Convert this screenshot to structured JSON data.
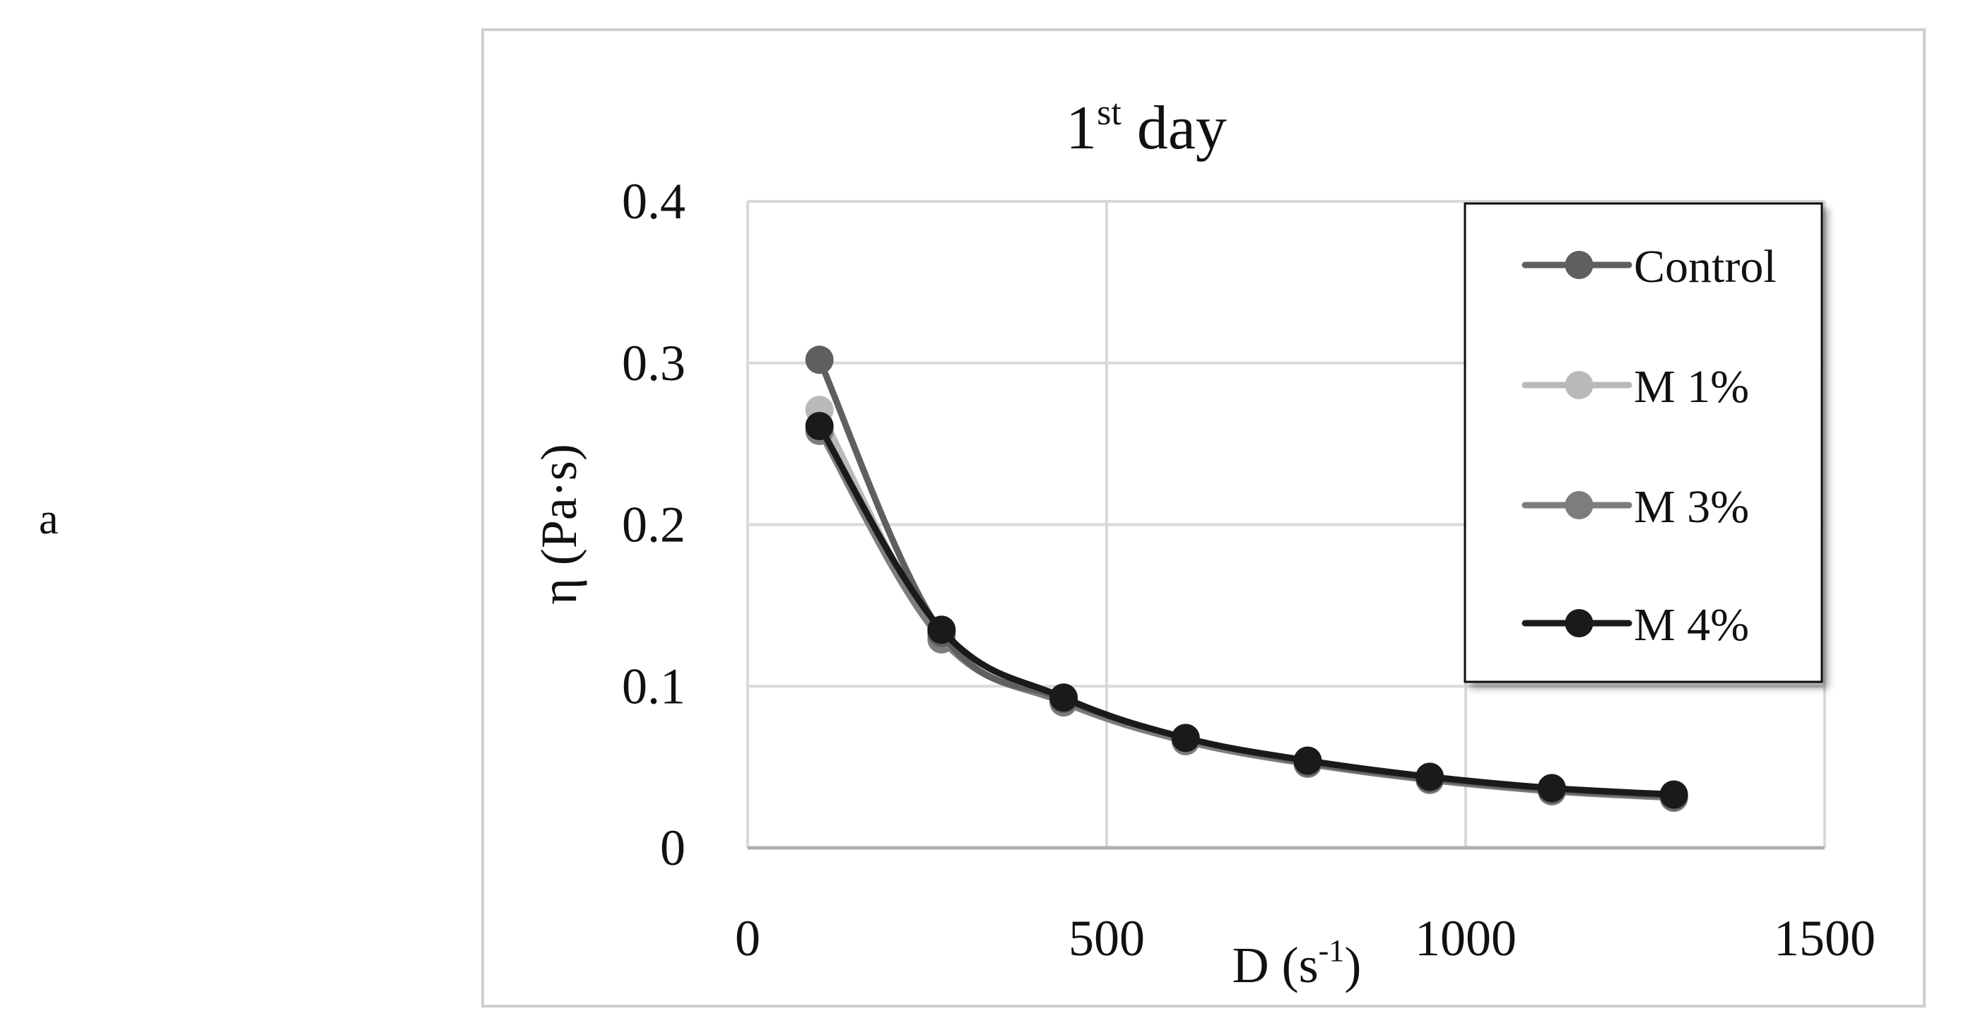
{
  "panel_label": "a",
  "chart_data": {
    "type": "line",
    "title": "1st day",
    "title_main": "1",
    "title_sup": "st",
    "title_rest": " day",
    "xlabel": "D (s-1)",
    "xlabel_main": "D (s",
    "xlabel_sup": "-1",
    "xlabel_end": ")",
    "ylabel": "η (Pa·s)",
    "xlim": [
      0,
      1500
    ],
    "ylim": [
      0,
      0.4
    ],
    "x_ticks": [
      0,
      500,
      1000,
      1500
    ],
    "x_tick_labels": [
      "0",
      "500",
      "1000",
      "1500"
    ],
    "y_ticks": [
      0,
      0.1,
      0.2,
      0.3,
      0.4
    ],
    "y_tick_labels": [
      "0",
      "0.1",
      "0.2",
      "0.3",
      "0.4"
    ],
    "grid": true,
    "legend_position": "right",
    "x": [
      100,
      270,
      440,
      610,
      780,
      950,
      1120,
      1290
    ],
    "series": [
      {
        "name": "Control",
        "color": "#5f5f5f",
        "values": [
          0.302,
          0.133,
          0.092,
          0.068,
          0.053,
          0.043,
          0.036,
          0.032
        ]
      },
      {
        "name": "M 1%",
        "color": "#b9b9b9",
        "values": [
          0.271,
          0.131,
          0.091,
          0.067,
          0.053,
          0.043,
          0.036,
          0.032
        ]
      },
      {
        "name": "M 3%",
        "color": "#7d7d7d",
        "values": [
          0.258,
          0.129,
          0.09,
          0.066,
          0.052,
          0.042,
          0.035,
          0.031
        ]
      },
      {
        "name": "M 4%",
        "color": "#1a1a1a",
        "values": [
          0.261,
          0.135,
          0.093,
          0.068,
          0.054,
          0.044,
          0.037,
          0.033
        ]
      }
    ]
  }
}
